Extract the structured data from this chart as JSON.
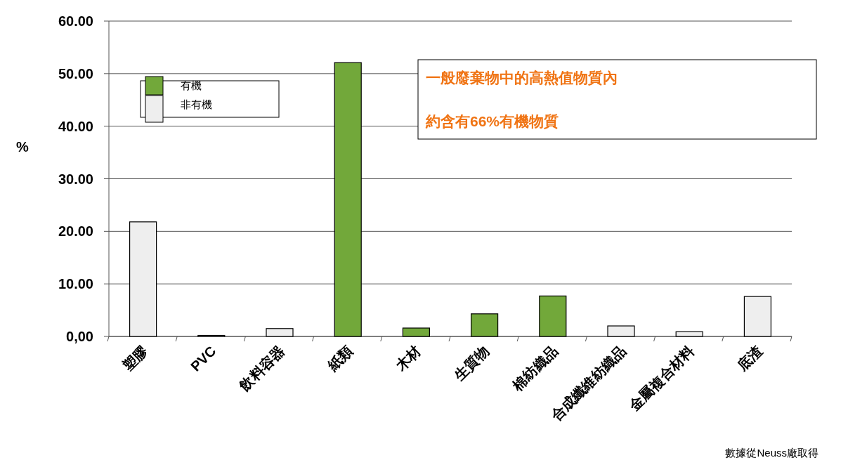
{
  "chart_data": {
    "type": "bar",
    "stacked": true,
    "ylabel": "%",
    "categories": [
      "塑膠",
      "PVC",
      "飲料容器",
      "紙類",
      "木材",
      "生質物",
      "棉紡織品",
      "合成纖維紡織品",
      "金屬複合材料",
      "底渣"
    ],
    "series": [
      {
        "name": "有機",
        "color": "#72a83a",
        "values": [
          null,
          null,
          null,
          52.1,
          1.6,
          4.3,
          7.7,
          null,
          null,
          null
        ]
      },
      {
        "name": "非有機",
        "color": "#eeeeee",
        "values": [
          21.8,
          0.2,
          1.5,
          null,
          null,
          null,
          null,
          2.0,
          0.9,
          7.6
        ]
      }
    ],
    "ylim": [
      0,
      60
    ],
    "yticks": [
      {
        "value": 0,
        "label": "0,00"
      },
      {
        "value": 10,
        "label": "10.00"
      },
      {
        "value": 20,
        "label": "20.00"
      },
      {
        "value": 30,
        "label": "30.00"
      },
      {
        "value": 40,
        "label": "40.00"
      },
      {
        "value": 50,
        "label": "50.00"
      },
      {
        "value": 60,
        "label": "60.00"
      }
    ],
    "grid": "y",
    "legend": "top left",
    "annotations": [
      "一般廢棄物中的高熱值物質內",
      "約含有66%有機物質",
      "數據從Neuss廠取得"
    ]
  }
}
